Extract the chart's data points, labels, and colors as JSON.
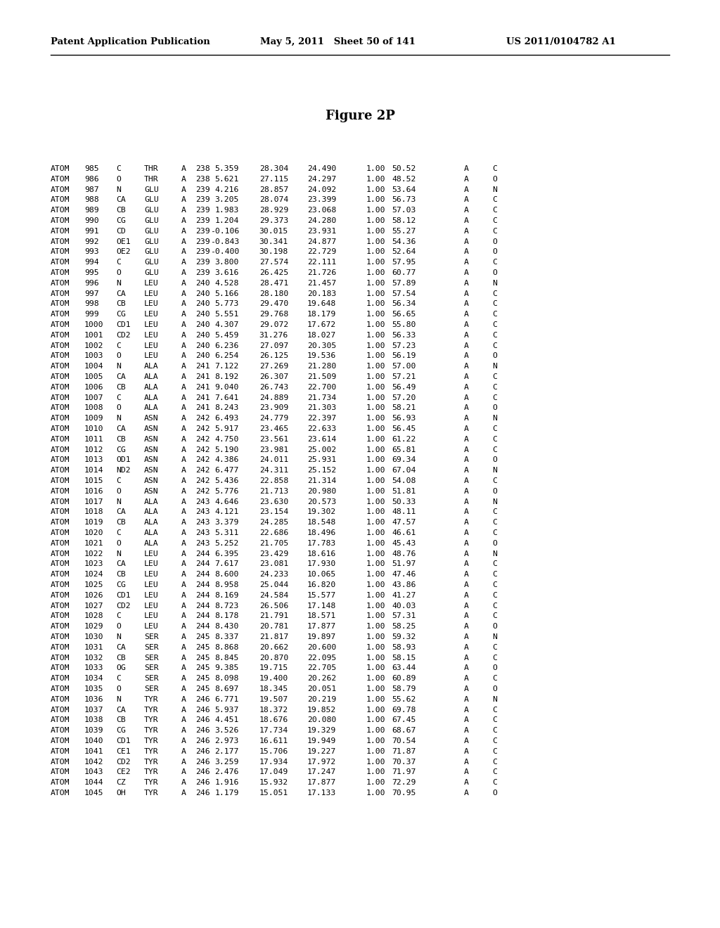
{
  "header_left": "Patent Application Publication",
  "header_mid": "May 5, 2011   Sheet 50 of 141",
  "header_right": "US 2011/0104782 A1",
  "figure_label": "Figure 2P",
  "rows": [
    [
      "ATOM",
      "985",
      "C",
      "THR",
      "A",
      "238",
      "5.359",
      "28.304",
      "24.490",
      "1.00",
      "50.52",
      "A",
      "C"
    ],
    [
      "ATOM",
      "986",
      "O",
      "THR",
      "A",
      "238",
      "5.621",
      "27.115",
      "24.297",
      "1.00",
      "48.52",
      "A",
      "O"
    ],
    [
      "ATOM",
      "987",
      "N",
      "GLU",
      "A",
      "239",
      "4.216",
      "28.857",
      "24.092",
      "1.00",
      "53.64",
      "A",
      "N"
    ],
    [
      "ATOM",
      "988",
      "CA",
      "GLU",
      "A",
      "239",
      "3.205",
      "28.074",
      "23.399",
      "1.00",
      "56.73",
      "A",
      "C"
    ],
    [
      "ATOM",
      "989",
      "CB",
      "GLU",
      "A",
      "239",
      "1.983",
      "28.929",
      "23.068",
      "1.00",
      "57.03",
      "A",
      "C"
    ],
    [
      "ATOM",
      "990",
      "CG",
      "GLU",
      "A",
      "239",
      "1.204",
      "29.373",
      "24.280",
      "1.00",
      "58.12",
      "A",
      "C"
    ],
    [
      "ATOM",
      "991",
      "CD",
      "GLU",
      "A",
      "239",
      "-0.106",
      "30.015",
      "23.931",
      "1.00",
      "55.27",
      "A",
      "C"
    ],
    [
      "ATOM",
      "992",
      "OE1",
      "GLU",
      "A",
      "239",
      "-0.843",
      "30.341",
      "24.877",
      "1.00",
      "54.36",
      "A",
      "O"
    ],
    [
      "ATOM",
      "993",
      "OE2",
      "GLU",
      "A",
      "239",
      "-0.400",
      "30.198",
      "22.729",
      "1.00",
      "52.64",
      "A",
      "O"
    ],
    [
      "ATOM",
      "994",
      "C",
      "GLU",
      "A",
      "239",
      "3.800",
      "27.574",
      "22.111",
      "1.00",
      "57.95",
      "A",
      "C"
    ],
    [
      "ATOM",
      "995",
      "O",
      "GLU",
      "A",
      "239",
      "3.616",
      "26.425",
      "21.726",
      "1.00",
      "60.77",
      "A",
      "O"
    ],
    [
      "ATOM",
      "996",
      "N",
      "LEU",
      "A",
      "240",
      "4.528",
      "28.471",
      "21.457",
      "1.00",
      "57.89",
      "A",
      "N"
    ],
    [
      "ATOM",
      "997",
      "CA",
      "LEU",
      "A",
      "240",
      "5.166",
      "28.180",
      "20.183",
      "1.00",
      "57.54",
      "A",
      "C"
    ],
    [
      "ATOM",
      "998",
      "CB",
      "LEU",
      "A",
      "240",
      "5.773",
      "29.470",
      "19.648",
      "1.00",
      "56.34",
      "A",
      "C"
    ],
    [
      "ATOM",
      "999",
      "CG",
      "LEU",
      "A",
      "240",
      "5.551",
      "29.768",
      "18.179",
      "1.00",
      "56.65",
      "A",
      "C"
    ],
    [
      "ATOM",
      "1000",
      "CD1",
      "LEU",
      "A",
      "240",
      "4.307",
      "29.072",
      "17.672",
      "1.00",
      "55.80",
      "A",
      "C"
    ],
    [
      "ATOM",
      "1001",
      "CD2",
      "LEU",
      "A",
      "240",
      "5.459",
      "31.276",
      "18.027",
      "1.00",
      "56.33",
      "A",
      "C"
    ],
    [
      "ATOM",
      "1002",
      "C",
      "LEU",
      "A",
      "240",
      "6.236",
      "27.097",
      "20.305",
      "1.00",
      "57.23",
      "A",
      "C"
    ],
    [
      "ATOM",
      "1003",
      "O",
      "LEU",
      "A",
      "240",
      "6.254",
      "26.125",
      "19.536",
      "1.00",
      "56.19",
      "A",
      "O"
    ],
    [
      "ATOM",
      "1004",
      "N",
      "ALA",
      "A",
      "241",
      "7.122",
      "27.269",
      "21.280",
      "1.00",
      "57.00",
      "A",
      "N"
    ],
    [
      "ATOM",
      "1005",
      "CA",
      "ALA",
      "A",
      "241",
      "8.192",
      "26.307",
      "21.509",
      "1.00",
      "57.21",
      "A",
      "C"
    ],
    [
      "ATOM",
      "1006",
      "CB",
      "ALA",
      "A",
      "241",
      "9.040",
      "26.743",
      "22.700",
      "1.00",
      "56.49",
      "A",
      "C"
    ],
    [
      "ATOM",
      "1007",
      "C",
      "ALA",
      "A",
      "241",
      "7.641",
      "24.889",
      "21.734",
      "1.00",
      "57.20",
      "A",
      "C"
    ],
    [
      "ATOM",
      "1008",
      "O",
      "ALA",
      "A",
      "241",
      "8.243",
      "23.909",
      "21.303",
      "1.00",
      "58.21",
      "A",
      "O"
    ],
    [
      "ATOM",
      "1009",
      "N",
      "ASN",
      "A",
      "242",
      "6.493",
      "24.779",
      "22.397",
      "1.00",
      "56.93",
      "A",
      "N"
    ],
    [
      "ATOM",
      "1010",
      "CA",
      "ASN",
      "A",
      "242",
      "5.917",
      "23.465",
      "22.633",
      "1.00",
      "56.45",
      "A",
      "C"
    ],
    [
      "ATOM",
      "1011",
      "CB",
      "ASN",
      "A",
      "242",
      "4.750",
      "23.561",
      "23.614",
      "1.00",
      "61.22",
      "A",
      "C"
    ],
    [
      "ATOM",
      "1012",
      "CG",
      "ASN",
      "A",
      "242",
      "5.190",
      "23.981",
      "25.002",
      "1.00",
      "65.81",
      "A",
      "C"
    ],
    [
      "ATOM",
      "1013",
      "OD1",
      "ASN",
      "A",
      "242",
      "4.386",
      "24.011",
      "25.931",
      "1.00",
      "69.34",
      "A",
      "O"
    ],
    [
      "ATOM",
      "1014",
      "ND2",
      "ASN",
      "A",
      "242",
      "6.477",
      "24.311",
      "25.152",
      "1.00",
      "67.04",
      "A",
      "N"
    ],
    [
      "ATOM",
      "1015",
      "C",
      "ASN",
      "A",
      "242",
      "5.436",
      "22.858",
      "21.314",
      "1.00",
      "54.08",
      "A",
      "C"
    ],
    [
      "ATOM",
      "1016",
      "O",
      "ASN",
      "A",
      "242",
      "5.776",
      "21.713",
      "20.980",
      "1.00",
      "51.81",
      "A",
      "O"
    ],
    [
      "ATOM",
      "1017",
      "N",
      "ALA",
      "A",
      "243",
      "4.646",
      "23.630",
      "20.573",
      "1.00",
      "50.33",
      "A",
      "N"
    ],
    [
      "ATOM",
      "1018",
      "CA",
      "ALA",
      "A",
      "243",
      "4.121",
      "23.154",
      "19.302",
      "1.00",
      "48.11",
      "A",
      "C"
    ],
    [
      "ATOM",
      "1019",
      "CB",
      "ALA",
      "A",
      "243",
      "3.379",
      "24.285",
      "18.548",
      "1.00",
      "47.57",
      "A",
      "C"
    ],
    [
      "ATOM",
      "1020",
      "C",
      "ALA",
      "A",
      "243",
      "5.311",
      "22.686",
      "18.496",
      "1.00",
      "46.61",
      "A",
      "C"
    ],
    [
      "ATOM",
      "1021",
      "O",
      "ALA",
      "A",
      "243",
      "5.252",
      "21.705",
      "17.783",
      "1.00",
      "45.43",
      "A",
      "O"
    ],
    [
      "ATOM",
      "1022",
      "N",
      "LEU",
      "A",
      "244",
      "6.395",
      "23.429",
      "18.616",
      "1.00",
      "48.76",
      "A",
      "N"
    ],
    [
      "ATOM",
      "1023",
      "CA",
      "LEU",
      "A",
      "244",
      "7.617",
      "23.081",
      "17.930",
      "1.00",
      "51.97",
      "A",
      "C"
    ],
    [
      "ATOM",
      "1024",
      "CB",
      "LEU",
      "A",
      "244",
      "8.600",
      "24.233",
      "10.065",
      "1.00",
      "47.46",
      "A",
      "C"
    ],
    [
      "ATOM",
      "1025",
      "CG",
      "LEU",
      "A",
      "244",
      "8.958",
      "25.044",
      "16.820",
      "1.00",
      "43.86",
      "A",
      "C"
    ],
    [
      "ATOM",
      "1026",
      "CD1",
      "LEU",
      "A",
      "244",
      "8.169",
      "24.584",
      "15.577",
      "1.00",
      "41.27",
      "A",
      "C"
    ],
    [
      "ATOM",
      "1027",
      "CD2",
      "LEU",
      "A",
      "244",
      "8.723",
      "26.506",
      "17.148",
      "1.00",
      "40.03",
      "A",
      "C"
    ],
    [
      "ATOM",
      "1028",
      "C",
      "LEU",
      "A",
      "244",
      "8.178",
      "21.791",
      "18.571",
      "1.00",
      "57.31",
      "A",
      "C"
    ],
    [
      "ATOM",
      "1029",
      "O",
      "LEU",
      "A",
      "244",
      "8.430",
      "20.781",
      "17.877",
      "1.00",
      "58.25",
      "A",
      "O"
    ],
    [
      "ATOM",
      "1030",
      "N",
      "SER",
      "A",
      "245",
      "8.337",
      "21.817",
      "19.897",
      "1.00",
      "59.32",
      "A",
      "N"
    ],
    [
      "ATOM",
      "1031",
      "CA",
      "SER",
      "A",
      "245",
      "8.868",
      "20.662",
      "20.600",
      "1.00",
      "58.93",
      "A",
      "C"
    ],
    [
      "ATOM",
      "1032",
      "CB",
      "SER",
      "A",
      "245",
      "8.845",
      "20.870",
      "22.095",
      "1.00",
      "58.15",
      "A",
      "C"
    ],
    [
      "ATOM",
      "1033",
      "OG",
      "SER",
      "A",
      "245",
      "9.385",
      "19.715",
      "22.705",
      "1.00",
      "63.44",
      "A",
      "O"
    ],
    [
      "ATOM",
      "1034",
      "C",
      "SER",
      "A",
      "245",
      "8.098",
      "19.400",
      "20.262",
      "1.00",
      "60.89",
      "A",
      "C"
    ],
    [
      "ATOM",
      "1035",
      "O",
      "SER",
      "A",
      "245",
      "8.697",
      "18.345",
      "20.051",
      "1.00",
      "58.79",
      "A",
      "O"
    ],
    [
      "ATOM",
      "1036",
      "N",
      "TYR",
      "A",
      "246",
      "6.771",
      "19.507",
      "20.219",
      "1.00",
      "55.62",
      "A",
      "N"
    ],
    [
      "ATOM",
      "1037",
      "CA",
      "TYR",
      "A",
      "246",
      "5.937",
      "18.372",
      "19.852",
      "1.00",
      "69.78",
      "A",
      "C"
    ],
    [
      "ATOM",
      "1038",
      "CB",
      "TYR",
      "A",
      "246",
      "4.451",
      "18.676",
      "20.080",
      "1.00",
      "67.45",
      "A",
      "C"
    ],
    [
      "ATOM",
      "1039",
      "CG",
      "TYR",
      "A",
      "246",
      "3.526",
      "17.734",
      "19.329",
      "1.00",
      "68.67",
      "A",
      "C"
    ],
    [
      "ATOM",
      "1040",
      "CD1",
      "TYR",
      "A",
      "246",
      "2.973",
      "16.611",
      "19.949",
      "1.00",
      "70.54",
      "A",
      "C"
    ],
    [
      "ATOM",
      "1041",
      "CE1",
      "TYR",
      "A",
      "246",
      "2.177",
      "15.706",
      "19.227",
      "1.00",
      "71.87",
      "A",
      "C"
    ],
    [
      "ATOM",
      "1042",
      "CD2",
      "TYR",
      "A",
      "246",
      "3.259",
      "17.934",
      "17.972",
      "1.00",
      "70.37",
      "A",
      "C"
    ],
    [
      "ATOM",
      "1043",
      "CE2",
      "TYR",
      "A",
      "246",
      "2.476",
      "17.049",
      "17.247",
      "1.00",
      "71.97",
      "A",
      "C"
    ],
    [
      "ATOM",
      "1044",
      "CZ",
      "TYR",
      "A",
      "246",
      "1.916",
      "15.932",
      "17.877",
      "1.00",
      "72.29",
      "A",
      "C"
    ],
    [
      "ATOM",
      "1045",
      "OH",
      "TYR",
      "A",
      "246",
      "1.179",
      "15.051",
      "17.133",
      "1.00",
      "70.95",
      "A",
      "O"
    ]
  ]
}
